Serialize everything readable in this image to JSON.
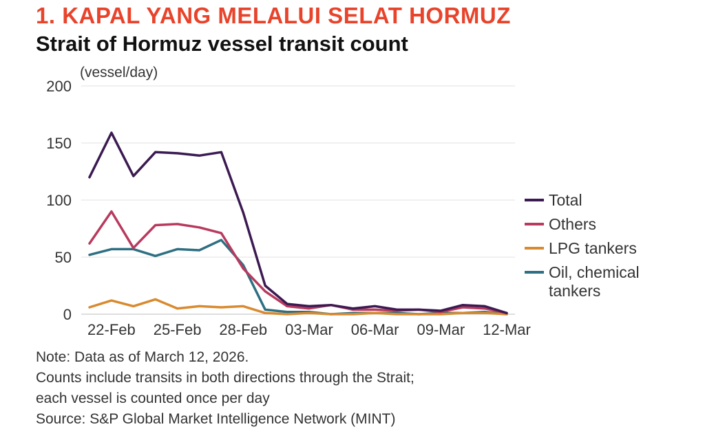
{
  "heading": {
    "kicker": "1. KAPAL YANG MELALUI SELAT HORMUZ",
    "title": "Strait of Hormuz vessel transit count"
  },
  "chart_data": {
    "type": "line",
    "title": "Strait of Hormuz vessel transit count",
    "unit_label": "(vessel/day)",
    "xlabel": "",
    "ylabel": "",
    "ylim": [
      0,
      200
    ],
    "yticks": [
      0,
      50,
      100,
      150,
      200
    ],
    "grid": true,
    "legend_position": "right",
    "x": [
      "21-Feb",
      "22-Feb",
      "23-Feb",
      "24-Feb",
      "25-Feb",
      "26-Feb",
      "27-Feb",
      "28-Feb",
      "01-Mar",
      "02-Mar",
      "03-Mar",
      "04-Mar",
      "05-Mar",
      "06-Mar",
      "07-Mar",
      "08-Mar",
      "09-Mar",
      "10-Mar",
      "11-Mar",
      "12-Mar"
    ],
    "xticks": [
      "22-Feb",
      "25-Feb",
      "28-Feb",
      "03-Mar",
      "06-Mar",
      "09-Mar",
      "12-Mar"
    ],
    "series": [
      {
        "name": "Total",
        "color": "#3b1a52",
        "values": [
          120,
          159,
          121,
          142,
          141,
          139,
          142,
          89,
          25,
          9,
          7,
          8,
          5,
          7,
          4,
          4,
          3,
          8,
          7,
          1
        ]
      },
      {
        "name": "Others",
        "color": "#b83a5e",
        "values": [
          62,
          90,
          58,
          78,
          79,
          76,
          71,
          40,
          20,
          7,
          5,
          8,
          4,
          4,
          3,
          4,
          2,
          6,
          5,
          1
        ]
      },
      {
        "name": "LPG tankers",
        "color": "#d88a2f",
        "values": [
          6,
          12,
          7,
          13,
          5,
          7,
          6,
          7,
          1,
          0,
          1,
          0,
          0,
          1,
          0,
          0,
          0,
          1,
          1,
          0
        ]
      },
      {
        "name": "Oil, chemical tankers",
        "color": "#2e6f82",
        "values": [
          52,
          57,
          57,
          51,
          57,
          56,
          65,
          43,
          4,
          2,
          2,
          0,
          1,
          1,
          1,
          0,
          1,
          1,
          2,
          0
        ]
      }
    ]
  },
  "notes": {
    "line1": "Note: Data as of March 12, 2026.",
    "line2": "Counts include transits in both directions through the Strait;",
    "line3": "each vessel is counted once per day",
    "line4": "Source: S&P Global Market Intelligence Network (MINT)"
  }
}
